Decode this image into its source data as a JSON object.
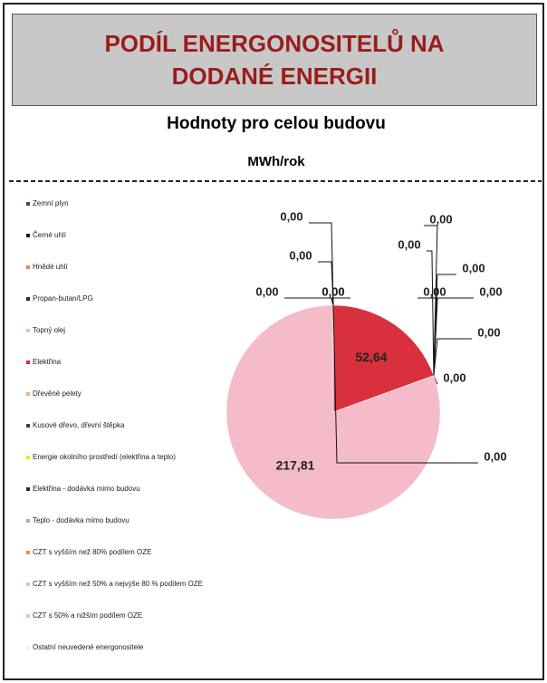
{
  "chart_data": {
    "type": "pie",
    "title": "PODÍL ENERGONOSITELŮ NA DODANÉ ENERGII",
    "subtitle": "Hodnoty pro celou budovu",
    "unit": "MWh/rok",
    "categories": [
      "Zemní plyn",
      "Černé uhlí",
      "Hnědé uhlí",
      "Propan-butan/LPG",
      "Topný olej",
      "Elektřina",
      "Dřevěné pelety",
      "Kusové dřevo, dřevní štěpka",
      "Energie okolního prostředí (elektřina a teplo)",
      "Elektřina - dodávka mimo budovu",
      "Teplo - dodávka mimo budovu",
      "CZT s vyšším než 80% podílem OZE",
      "CZT s vyšším než 50% a nejvýše 80 % podílem OZE",
      "CZT s 50% a nižším podílem OZE",
      "Ostatní neuvedené energonositele"
    ],
    "values": [
      0,
      0,
      0,
      0,
      0,
      52.64,
      0,
      0,
      0,
      0,
      0,
      0,
      0,
      217.81,
      0
    ],
    "value_labels": [
      "0,00",
      "0,00",
      "0,00",
      "0,00",
      "0,00",
      "52,64",
      "0,00",
      "0,00",
      "0,00",
      "0,00",
      "0,00",
      "0,00",
      "0,00",
      "217,81",
      "0,00"
    ],
    "colors": [
      "#3b4a5e",
      "#1a1a1a",
      "#e08a5a",
      "#2a2a3a",
      "#f2b8c6",
      "#d9303e",
      "#f0b070",
      "#404040",
      "#f2e600",
      "#2a2a2a",
      "#8fb4dc",
      "#f08a50",
      "#b8cce8",
      "#f4bcc8",
      "#f4f0f0"
    ],
    "legend": "left"
  }
}
